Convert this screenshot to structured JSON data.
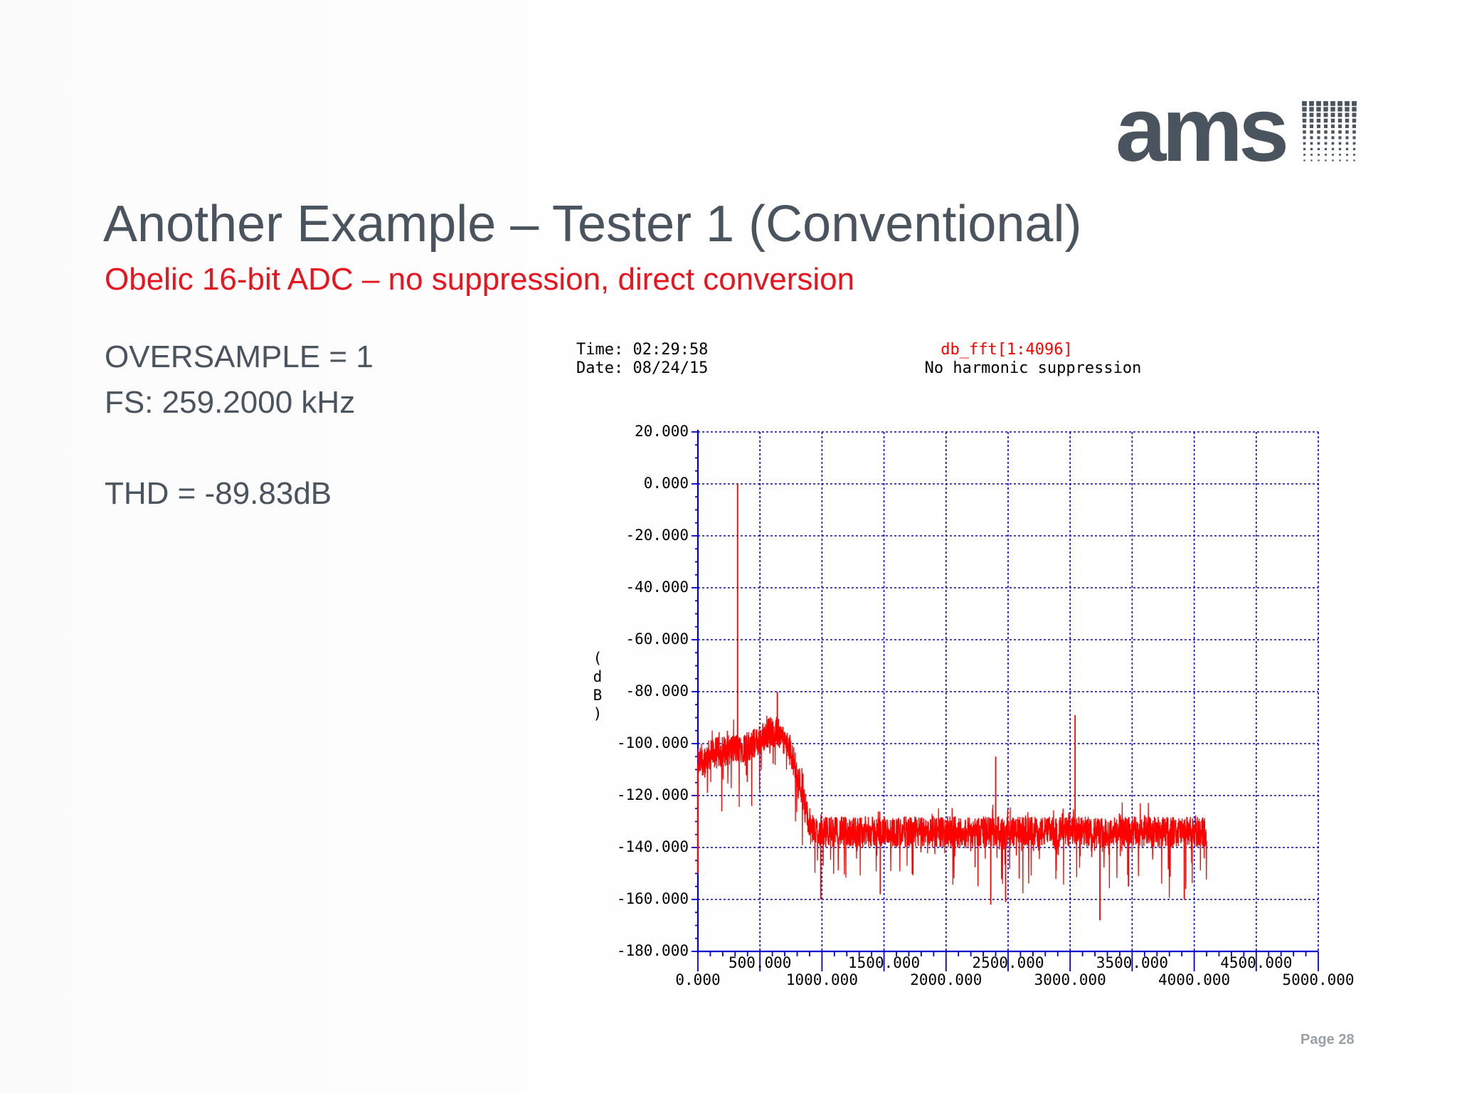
{
  "slide": {
    "logo_text": "ams",
    "title": "Another Example – Tester 1  (Conventional)",
    "subtitle": "Obelic 16-bit ADC – no suppression, direct conversion",
    "params": {
      "oversample": "OVERSAMPLE = 1",
      "fs": "FS: 259.2000 kHz",
      "thd": "THD = -89.83dB"
    },
    "page": "Page 28"
  },
  "colors": {
    "title": "#4a545e",
    "accent": "#e8141e",
    "grid": "#0000d0",
    "trace": "#ff0000"
  },
  "chart_data": {
    "type": "line",
    "meta": {
      "time": "Time: 02:29:58",
      "date": "Date: 08/24/15"
    },
    "title": "db_fft[1:4096]",
    "subtitle": "No harmonic suppression",
    "ylabel": "(dB)",
    "xlim": [
      0,
      5000
    ],
    "ylim": [
      -180,
      20
    ],
    "grid": true,
    "x_ticks_low": [
      "0.000",
      "1000.000",
      "2000.000",
      "3000.000",
      "4000.000",
      "5000.000"
    ],
    "x_ticks_high": [
      "500.000",
      "1500.000",
      "2500.000",
      "3500.000",
      "4500.000"
    ],
    "y_ticks": [
      "20.000",
      "0.000",
      "-20.000",
      "-40.000",
      "-60.000",
      "-80.000",
      "-100.000",
      "-120.000",
      "-140.000",
      "-160.000",
      "-180.000"
    ],
    "series": [
      {
        "color": "#ff0000",
        "baseline": [
          [
            0,
            -108
          ],
          [
            100,
            -104
          ],
          [
            200,
            -103
          ],
          [
            300,
            -102
          ],
          [
            400,
            -101
          ],
          [
            500,
            -99
          ],
          [
            580,
            -95
          ],
          [
            650,
            -96
          ],
          [
            750,
            -103
          ],
          [
            850,
            -120
          ],
          [
            900,
            -133
          ],
          [
            1000,
            -134
          ],
          [
            1500,
            -134
          ],
          [
            2000,
            -134
          ],
          [
            2500,
            -134
          ],
          [
            3000,
            -134
          ],
          [
            3500,
            -134
          ],
          [
            4000,
            -134
          ],
          [
            4100,
            -134
          ]
        ],
        "spikes": [
          [
            320,
            0
          ],
          [
            640,
            -80
          ],
          [
            2400,
            -105
          ],
          [
            3040,
            -89
          ],
          [
            990,
            -160
          ],
          [
            1470,
            -158
          ],
          [
            2360,
            -162
          ],
          [
            2480,
            -161
          ],
          [
            3240,
            -168
          ],
          [
            3470,
            -155
          ],
          [
            3920,
            -160
          ]
        ]
      }
    ]
  }
}
